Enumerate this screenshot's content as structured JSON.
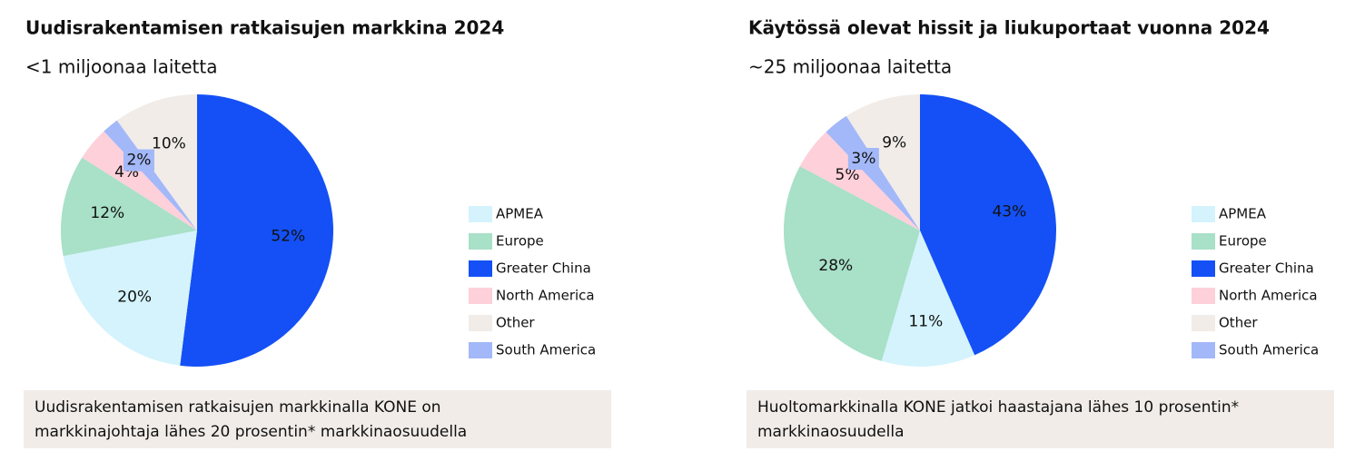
{
  "chart_data": [
    {
      "type": "pie",
      "title": "Uudisrakentamisen ratkaisujen markkina 2024",
      "subtitle": "<1 miljoonaa laitetta",
      "categories": [
        "Greater China",
        "APMEA",
        "Europe",
        "North America",
        "South America",
        "Other"
      ],
      "values": [
        52,
        20,
        12,
        4,
        2,
        10
      ],
      "value_labels": [
        "52%",
        "20%",
        "12%",
        "4%",
        "2%",
        "10%"
      ],
      "colors": [
        "#1450f5",
        "#d4f3fc",
        "#a8e0c8",
        "#fdd0da",
        "#a3b8f8",
        "#f1ece8"
      ],
      "annotation": [
        "Uudisrakentamisen ratkaisujen markkinalla KONE on",
        "markkinajohtaja lähes 20 prosentin* markkinaosuudella"
      ]
    },
    {
      "type": "pie",
      "title": "Käytössä olevat hissit ja liukuportaat vuonna 2024",
      "subtitle": "~25 miljoonaa laitetta",
      "categories": [
        "Greater China",
        "APMEA",
        "Europe",
        "North America",
        "South America",
        "Other"
      ],
      "values": [
        43,
        11,
        28,
        5,
        3,
        9
      ],
      "value_labels": [
        "43%",
        "11%",
        "28%",
        "5%",
        "3%",
        "9%"
      ],
      "colors": [
        "#1450f5",
        "#d4f3fc",
        "#a8e0c8",
        "#fdd0da",
        "#a3b8f8",
        "#f1ece8"
      ],
      "annotation": [
        "Huoltomarkkinalla KONE jatkoi haastajana lähes 10 prosentin*",
        "markkinaosuudella"
      ]
    }
  ]
}
